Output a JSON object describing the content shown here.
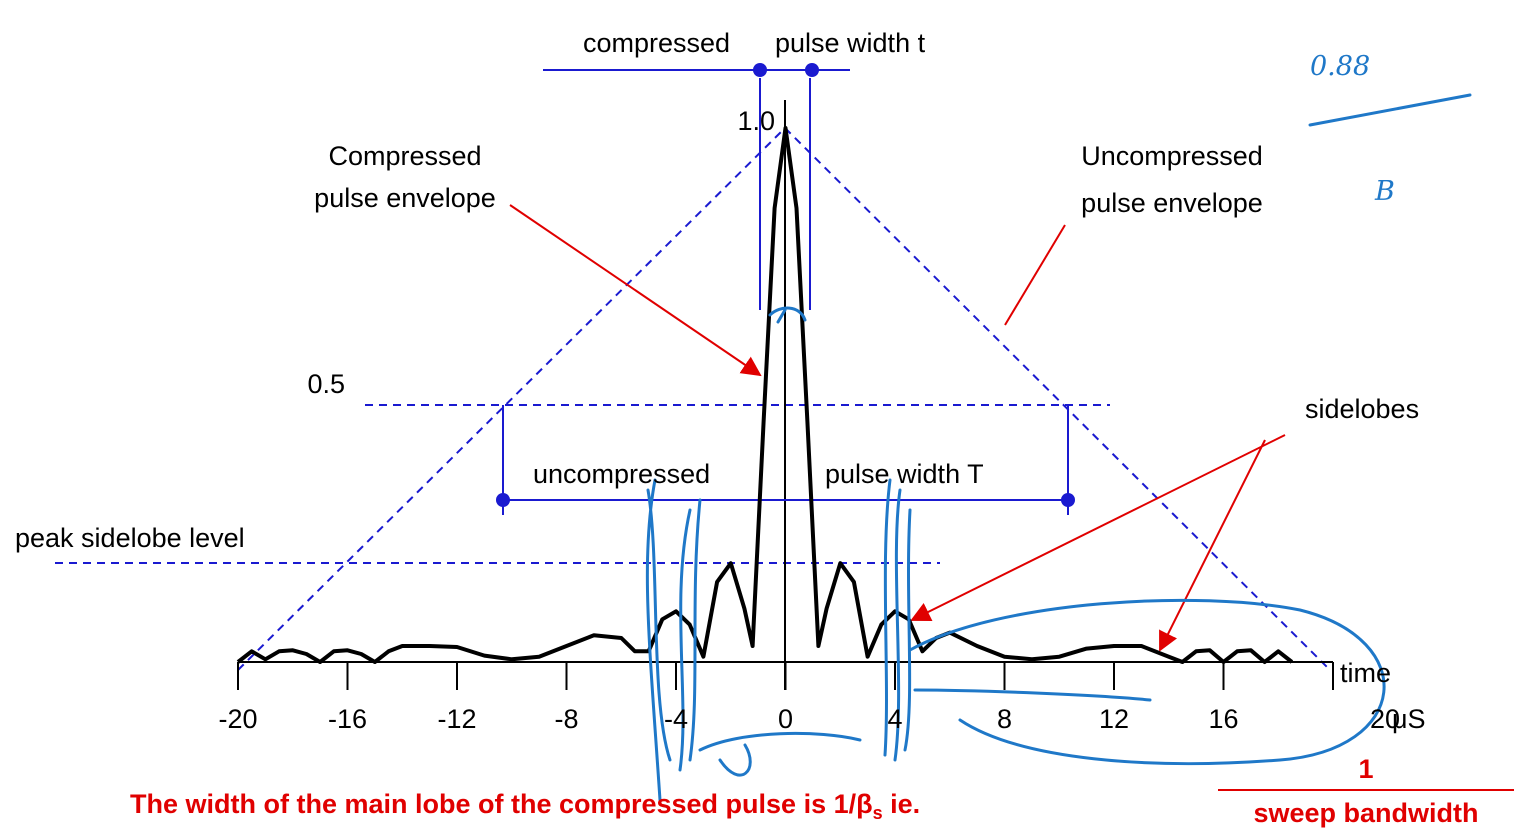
{
  "labels": {
    "compressed_left": "compressed",
    "compressed_right": "pulse width t",
    "compressed_env": [
      "Compressed",
      "pulse envelope"
    ],
    "uncompressed_env": [
      "Uncompressed",
      "pulse envelope"
    ],
    "uncompressed_left": "uncompressed",
    "uncompressed_right": "pulse width T",
    "peak_sidelobe": "peak sidelobe level",
    "sidelobes": "sidelobes",
    "time": "time",
    "unit": "μS",
    "handwritten_num": "0.88",
    "handwritten_den": "B"
  },
  "chart_data": {
    "type": "line",
    "xticks": [
      -20,
      -16,
      -12,
      -8,
      -4,
      0,
      4,
      8,
      12,
      16,
      20
    ],
    "yticks": [
      {
        "value": 1,
        "label": "1.0"
      },
      0.5
    ],
    "xlim": [
      -20,
      20
    ],
    "ylim": [
      0,
      1
    ],
    "x": [
      -20,
      -19.5,
      -19,
      -18.5,
      -18,
      -17.5,
      -17,
      -16.5,
      -16,
      -15.5,
      -15,
      -14.5,
      -14,
      -13,
      -12,
      -11,
      -10,
      -9,
      -8,
      -7,
      -6,
      -5.5,
      -5,
      -4.5,
      -4,
      -3.5,
      -3,
      -2.5,
      -2,
      -1.5,
      -1.2,
      -0.8,
      -0.4,
      0,
      0.4,
      0.8,
      1.2,
      1.5,
      2,
      2.5,
      3,
      3.5,
      4,
      4.5,
      5,
      5.5,
      6,
      7,
      8,
      9,
      10,
      11,
      12,
      13,
      14,
      14.5,
      15,
      15.5,
      16,
      16.5,
      17,
      17.5,
      18,
      18.5
    ],
    "values": [
      0,
      0.02,
      0.005,
      0.02,
      0.022,
      0.015,
      0,
      0.02,
      0.022,
      0.015,
      0,
      0.02,
      0.03,
      0.03,
      0.028,
      0.012,
      0.005,
      0.01,
      0.03,
      0.05,
      0.045,
      0.02,
      0.02,
      0.08,
      0.095,
      0.07,
      0.01,
      0.15,
      0.185,
      0.1,
      0.03,
      0.45,
      0.85,
      1,
      0.85,
      0.45,
      0.03,
      0.1,
      0.185,
      0.15,
      0.01,
      0.07,
      0.095,
      0.08,
      0.02,
      0.045,
      0.055,
      0.03,
      0.01,
      0.005,
      0.01,
      0.025,
      0.03,
      0.03,
      0.01,
      0,
      0.02,
      0.022,
      0,
      0.02,
      0.022,
      0,
      0.02,
      0
    ],
    "color": "#000000"
  },
  "footer": {
    "main": "The width of the main lobe of the compressed pulse is 1/β",
    "sub": "s",
    "tail": " ie.",
    "numerator": "1",
    "denominator": "sweep bandwidth"
  }
}
